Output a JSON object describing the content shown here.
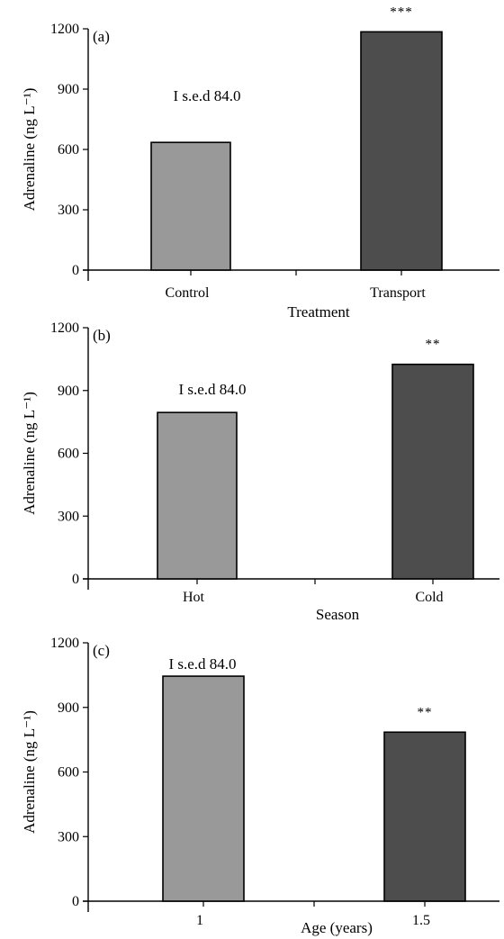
{
  "chart_data": [
    {
      "type": "bar",
      "panel_label": "(a)",
      "categories": [
        "Control",
        "Transport"
      ],
      "values": [
        635,
        1185
      ],
      "colors": [
        "#999999",
        "#4d4d4d"
      ],
      "significance": [
        "",
        "***"
      ],
      "annotation": "I s.e.d 84.0",
      "xlabel": "Treatment",
      "ylabel": "Adrenaline (ng L⁻¹)",
      "ylim": [
        0,
        1200
      ],
      "yticks": [
        "0",
        "300",
        "600",
        "900",
        "1200"
      ],
      "grid": false
    },
    {
      "type": "bar",
      "panel_label": "(b)",
      "categories": [
        "Hot",
        "Cold"
      ],
      "values": [
        795,
        1025
      ],
      "colors": [
        "#999999",
        "#4d4d4d"
      ],
      "significance": [
        "",
        "**"
      ],
      "annotation": "I s.e.d 84.0",
      "xlabel": "Season",
      "ylabel": "Adrenaline (ng L⁻¹)",
      "ylim": [
        0,
        1200
      ],
      "yticks": [
        "0",
        "300",
        "600",
        "900",
        "1200"
      ],
      "grid": false
    },
    {
      "type": "bar",
      "panel_label": "(c)",
      "categories": [
        "1",
        "1.5"
      ],
      "values": [
        1045,
        785
      ],
      "colors": [
        "#999999",
        "#4d4d4d"
      ],
      "significance": [
        "",
        "**"
      ],
      "annotation": "I s.e.d 84.0",
      "xlabel": "Age (years)",
      "ylabel": "Adrenaline (ng L⁻¹)",
      "ylim": [
        0,
        1200
      ],
      "yticks": [
        "0",
        "300",
        "600",
        "900",
        "1200"
      ],
      "grid": false
    }
  ]
}
